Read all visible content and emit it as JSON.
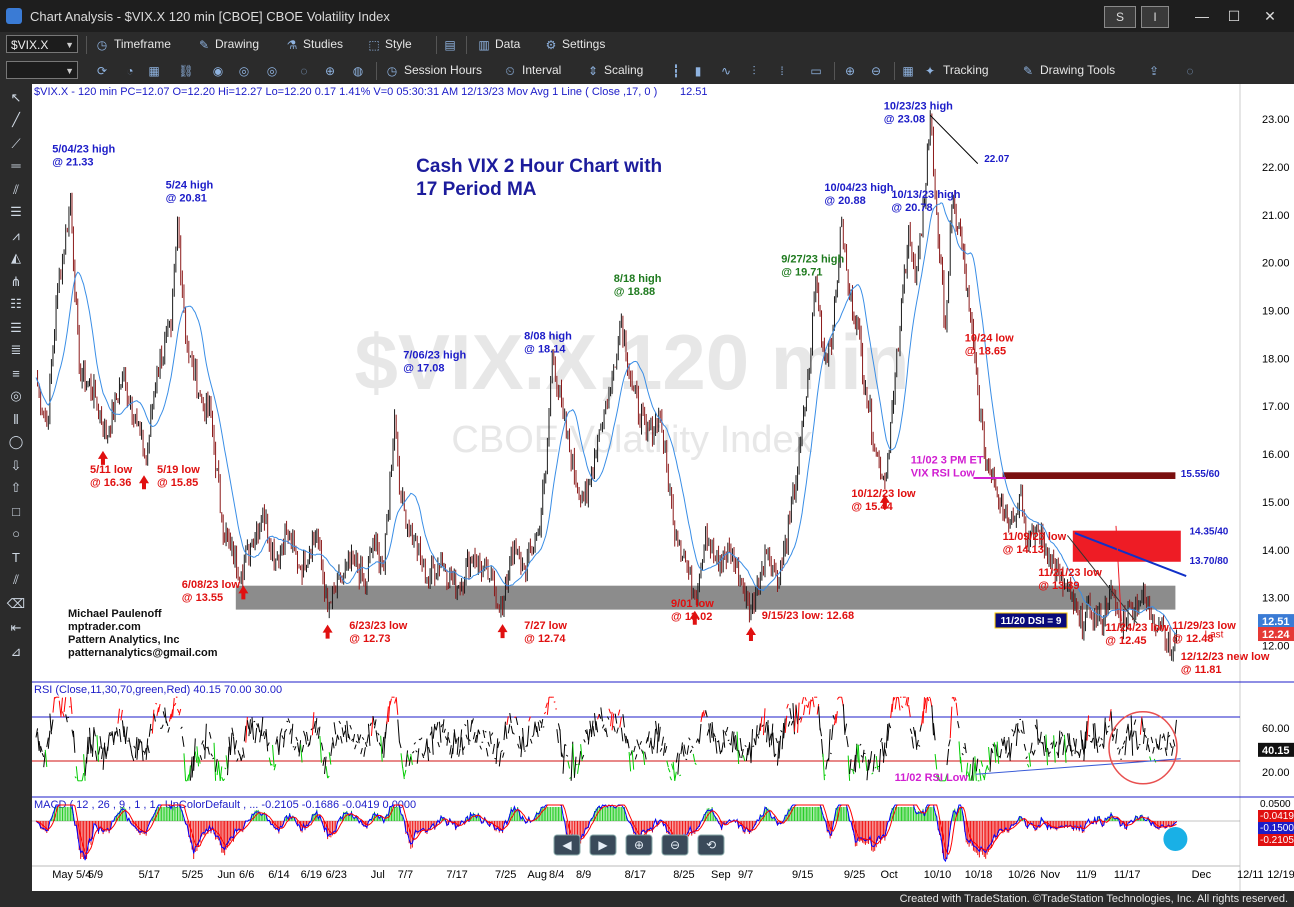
{
  "window": {
    "title": "Chart Analysis - $VIX.X 120 min [CBOE] CBOE Volatility Index",
    "s_button": "S",
    "i_button": "I",
    "minimize": "—",
    "maximize": "☐",
    "close": "✕"
  },
  "toolbar1": {
    "symbol": "$VIX.X",
    "timeframe": "Timeframe",
    "drawing": "Drawing",
    "studies": "Studies",
    "style": "Style",
    "data": "Data",
    "settings": "Settings"
  },
  "toolbar2": {
    "session_hours": "Session Hours",
    "interval": "Interval",
    "scaling": "Scaling",
    "tracking": "Tracking",
    "drawing_tools": "Drawing Tools"
  },
  "status_bar": {
    "text": "Created with TradeStation. ©TradeStation Technologies, Inc. All rights reserved."
  },
  "chart_data": {
    "type": "line",
    "header": "$VIX.X - 120 min  PC=12.07  O=12.20  Hi=12.27  Lo=12.20  0.17  1.41%  V=0  05:30:31 AM  12/13/23  Mov Avg 1 Line  ( Close ,17,  0 )",
    "header_value": "12.51",
    "watermark_symbol": "$VIX.X,120 min",
    "watermark_name": "CBOE Volatility Index",
    "title_line1": "Cash VIX 2 Hour Chart with",
    "title_line2": "17 Period MA",
    "ylim": [
      11.3,
      23.4
    ],
    "y_ticks": [
      "23.00",
      "22.00",
      "21.00",
      "20.00",
      "19.00",
      "18.00",
      "17.00",
      "16.00",
      "15.00",
      "14.00",
      "13.00",
      "12.00"
    ],
    "y_tick_values": [
      23,
      22,
      21,
      20,
      19,
      18,
      17,
      16,
      15,
      14,
      13,
      12
    ],
    "price_badges": [
      {
        "value": 12.51,
        "label": "12.51",
        "color": "#3a7bd5"
      },
      {
        "value": 12.24,
        "label": "12.24",
        "color": "#e53935"
      }
    ],
    "last_label": "Last",
    "x_ticks": [
      "May 5/4",
      "5/9",
      "5/17",
      "5/25",
      "Jun",
      "6/6",
      "6/14",
      "6/19",
      "6/23",
      "Jul",
      "7/7",
      "7/17",
      "7/25",
      "Aug",
      "8/4",
      "8/9",
      "8/17",
      "8/25",
      "Sep",
      "9/7",
      "9/15",
      "9/25",
      "Oct",
      "10/10",
      "10/18",
      "10/26",
      "Nov",
      "11/9",
      "11/17",
      "Dec",
      "12/11",
      "12/19"
    ],
    "x_tick_pos": [
      0.015,
      0.048,
      0.095,
      0.135,
      0.168,
      0.188,
      0.215,
      0.245,
      0.268,
      0.31,
      0.335,
      0.38,
      0.425,
      0.455,
      0.475,
      0.5,
      0.545,
      0.59,
      0.625,
      0.65,
      0.7,
      0.748,
      0.782,
      0.822,
      0.86,
      0.9,
      0.93,
      0.963,
      0.998,
      1.07,
      1.112,
      1.14
    ],
    "price_points": [
      [
        0.0,
        17.6
      ],
      [
        0.01,
        16.6
      ],
      [
        0.02,
        19.4
      ],
      [
        0.032,
        21.33
      ],
      [
        0.04,
        17.8
      ],
      [
        0.055,
        17.2
      ],
      [
        0.065,
        16.36
      ],
      [
        0.08,
        17.6
      ],
      [
        0.092,
        16.8
      ],
      [
        0.102,
        15.85
      ],
      [
        0.112,
        17.8
      ],
      [
        0.125,
        18.6
      ],
      [
        0.131,
        20.81
      ],
      [
        0.14,
        18.2
      ],
      [
        0.152,
        17.2
      ],
      [
        0.162,
        16.8
      ],
      [
        0.172,
        14.6
      ],
      [
        0.18,
        14.0
      ],
      [
        0.19,
        13.55
      ],
      [
        0.2,
        14.2
      ],
      [
        0.21,
        14.8
      ],
      [
        0.222,
        13.8
      ],
      [
        0.232,
        14.4
      ],
      [
        0.245,
        13.6
      ],
      [
        0.26,
        14.4
      ],
      [
        0.27,
        12.73
      ],
      [
        0.282,
        13.4
      ],
      [
        0.295,
        13.8
      ],
      [
        0.305,
        13.2
      ],
      [
        0.312,
        14.2
      ],
      [
        0.322,
        13.6
      ],
      [
        0.332,
        16.8
      ],
      [
        0.338,
        15.0
      ],
      [
        0.35,
        14.2
      ],
      [
        0.362,
        13.4
      ],
      [
        0.375,
        13.8
      ],
      [
        0.39,
        13.2
      ],
      [
        0.405,
        13.9
      ],
      [
        0.42,
        13.4
      ],
      [
        0.432,
        12.74
      ],
      [
        0.44,
        14.0
      ],
      [
        0.452,
        13.6
      ],
      [
        0.465,
        14.4
      ],
      [
        0.472,
        15.6
      ],
      [
        0.478,
        18.14
      ],
      [
        0.488,
        16.8
      ],
      [
        0.5,
        15.4
      ],
      [
        0.51,
        15.0
      ],
      [
        0.52,
        16.4
      ],
      [
        0.532,
        17.4
      ],
      [
        0.542,
        18.88
      ],
      [
        0.552,
        17.4
      ],
      [
        0.565,
        16.4
      ],
      [
        0.578,
        16.8
      ],
      [
        0.59,
        14.6
      ],
      [
        0.6,
        13.9
      ],
      [
        0.61,
        13.02
      ],
      [
        0.62,
        14.4
      ],
      [
        0.632,
        13.6
      ],
      [
        0.642,
        14.0
      ],
      [
        0.652,
        13.4
      ],
      [
        0.662,
        12.68
      ],
      [
        0.675,
        14.0
      ],
      [
        0.688,
        13.4
      ],
      [
        0.698,
        14.6
      ],
      [
        0.708,
        16.2
      ],
      [
        0.716,
        17.8
      ],
      [
        0.722,
        19.71
      ],
      [
        0.73,
        18.0
      ],
      [
        0.738,
        18.6
      ],
      [
        0.746,
        20.88
      ],
      [
        0.752,
        19.4
      ],
      [
        0.76,
        18.8
      ],
      [
        0.768,
        17.4
      ],
      [
        0.778,
        16.0
      ],
      [
        0.786,
        15.44
      ],
      [
        0.794,
        17.2
      ],
      [
        0.8,
        18.6
      ],
      [
        0.808,
        20.78
      ],
      [
        0.814,
        19.6
      ],
      [
        0.82,
        20.6
      ],
      [
        0.828,
        23.08
      ],
      [
        0.834,
        21.0
      ],
      [
        0.842,
        18.65
      ],
      [
        0.848,
        21.2
      ],
      [
        0.856,
        20.6
      ],
      [
        0.864,
        19.0
      ],
      [
        0.872,
        17.4
      ],
      [
        0.878,
        16.0
      ],
      [
        0.886,
        15.6
      ],
      [
        0.894,
        15.0
      ],
      [
        0.902,
        14.6
      ],
      [
        0.912,
        15.2
      ],
      [
        0.918,
        14.13
      ],
      [
        0.928,
        14.4
      ],
      [
        0.938,
        13.9
      ],
      [
        0.948,
        13.39
      ],
      [
        0.958,
        13.0
      ],
      [
        0.966,
        12.45
      ],
      [
        0.976,
        12.7
      ],
      [
        0.986,
        12.5
      ],
      [
        0.994,
        13.1
      ],
      [
        1.004,
        12.48
      ],
      [
        1.014,
        12.8
      ],
      [
        1.024,
        13.0
      ],
      [
        1.034,
        12.6
      ],
      [
        1.044,
        12.4
      ],
      [
        1.05,
        11.81
      ],
      [
        1.056,
        12.24
      ]
    ],
    "annotations_blue": [
      {
        "text": "5/04/23 high",
        "text2": "@ 21.33",
        "x": 0.015,
        "y": 22.3
      },
      {
        "text": "5/24 high",
        "text2": "@ 20.81",
        "x": 0.12,
        "y": 21.55
      },
      {
        "text": "7/06/23 high",
        "text2": "@ 17.08",
        "x": 0.34,
        "y": 18.0
      },
      {
        "text": "8/08 high",
        "text2": "@ 18.14",
        "x": 0.452,
        "y": 18.4
      },
      {
        "text": "10/04/23 high",
        "text2": "@ 20.88",
        "x": 0.73,
        "y": 21.5
      },
      {
        "text": "10/13/23 high",
        "text2": "@ 20.78",
        "x": 0.792,
        "y": 21.35
      },
      {
        "text": "10/23/23 high",
        "text2": "@ 23.08",
        "x": 0.785,
        "y": 23.2
      }
    ],
    "annotations_green": [
      {
        "text": "8/18 high",
        "text2": "@ 18.88",
        "x": 0.535,
        "y": 19.6
      },
      {
        "text": "9/27/23 high",
        "text2": "@ 19.71",
        "x": 0.69,
        "y": 20.0
      }
    ],
    "annotations_red": [
      {
        "text": "5/11 low",
        "text2": "@ 16.36",
        "x": 0.05,
        "y": 15.6
      },
      {
        "text": "5/19 low",
        "text2": "@ 15.85",
        "x": 0.112,
        "y": 15.6
      },
      {
        "text": "6/08/23 low",
        "text2": "@ 13.55",
        "x": 0.135,
        "y": 13.2
      },
      {
        "text": "6/23/23 low",
        "text2": "@ 12.73",
        "x": 0.29,
        "y": 12.35
      },
      {
        "text": "7/27 low",
        "text2": "@ 12.74",
        "x": 0.452,
        "y": 12.35
      },
      {
        "text": "9/01 low",
        "text2": "@ 13.02",
        "x": 0.588,
        "y": 12.8
      },
      {
        "text": "10/12/23 low",
        "text2": "@ 15.44",
        "x": 0.755,
        "y": 15.1
      },
      {
        "text": "10/24 low",
        "text2": "@ 18.65",
        "x": 0.86,
        "y": 18.35
      },
      {
        "text": "11/09/23 low",
        "text2": "@ 14.13",
        "x": 0.895,
        "y": 14.2
      },
      {
        "text": "11/21/23 low",
        "text2": "@ 13.39",
        "x": 0.928,
        "y": 13.45
      },
      {
        "text": "11/24/23 low",
        "text2": "@ 12.45",
        "x": 0.99,
        "y": 12.3
      },
      {
        "text": "11/29/23 low",
        "text2": "@ 12.48",
        "x": 1.052,
        "y": 12.35
      },
      {
        "text": "12/12/23 new low",
        "text2": "@ 11.81",
        "x": 1.06,
        "y": 11.7
      }
    ],
    "label_9_15": "9/15/23 low: 12.68",
    "label_22_07": "22.07",
    "label_11_02_line1": "11/02 3 PM ET",
    "label_11_02_line2": "VIX RSI Low",
    "level_15_55": "15.55/60",
    "level_14_35": "14.35/40",
    "level_13_70": "13.70/80",
    "dsi_label": "11/20 DSI = 9",
    "credit_lines": [
      "Michael Paulenoff",
      "mptrader.com",
      "Pattern Analytics, Inc",
      "patternanalytics@gmail.com"
    ],
    "support_zone": [
      12.75,
      13.25
    ],
    "red_zone": [
      13.75,
      14.4
    ],
    "rsi": {
      "header": "RSI (Close,11,30,70,green,Red)  40.15  70.00  30.00",
      "ylim": [
        0,
        100
      ],
      "overbought": 70,
      "oversold": 30,
      "y_ticks": [
        "60.00",
        "20.00"
      ],
      "y_tick_values": [
        60,
        20
      ],
      "badge": "40.15",
      "note": "11/02 RSI Low"
    },
    "macd": {
      "header": "MACD ( 12 , 26 , 9 , 1 , 1 , UpColorDefault , ...  -0.2105  -0.1686  -0.0419  0.0000",
      "y_ticks": [
        "0.0500",
        "-0.0419",
        "-0.1500",
        "-0.2105"
      ]
    },
    "colors": {
      "price": "#111111",
      "ma": "#3a8ee6",
      "support_zone": "#8c8c8c",
      "red_zone": "#ee1c25",
      "dark_zone": "#7a0f0f",
      "rsi_line": "#000000",
      "rsi_high": "#ff0000",
      "rsi_low": "#00cc00",
      "macd_pos": "#22cc22",
      "macd_neg": "#ee1111",
      "macd_line": "#0000ff",
      "signal_line": "#ff0000"
    }
  }
}
